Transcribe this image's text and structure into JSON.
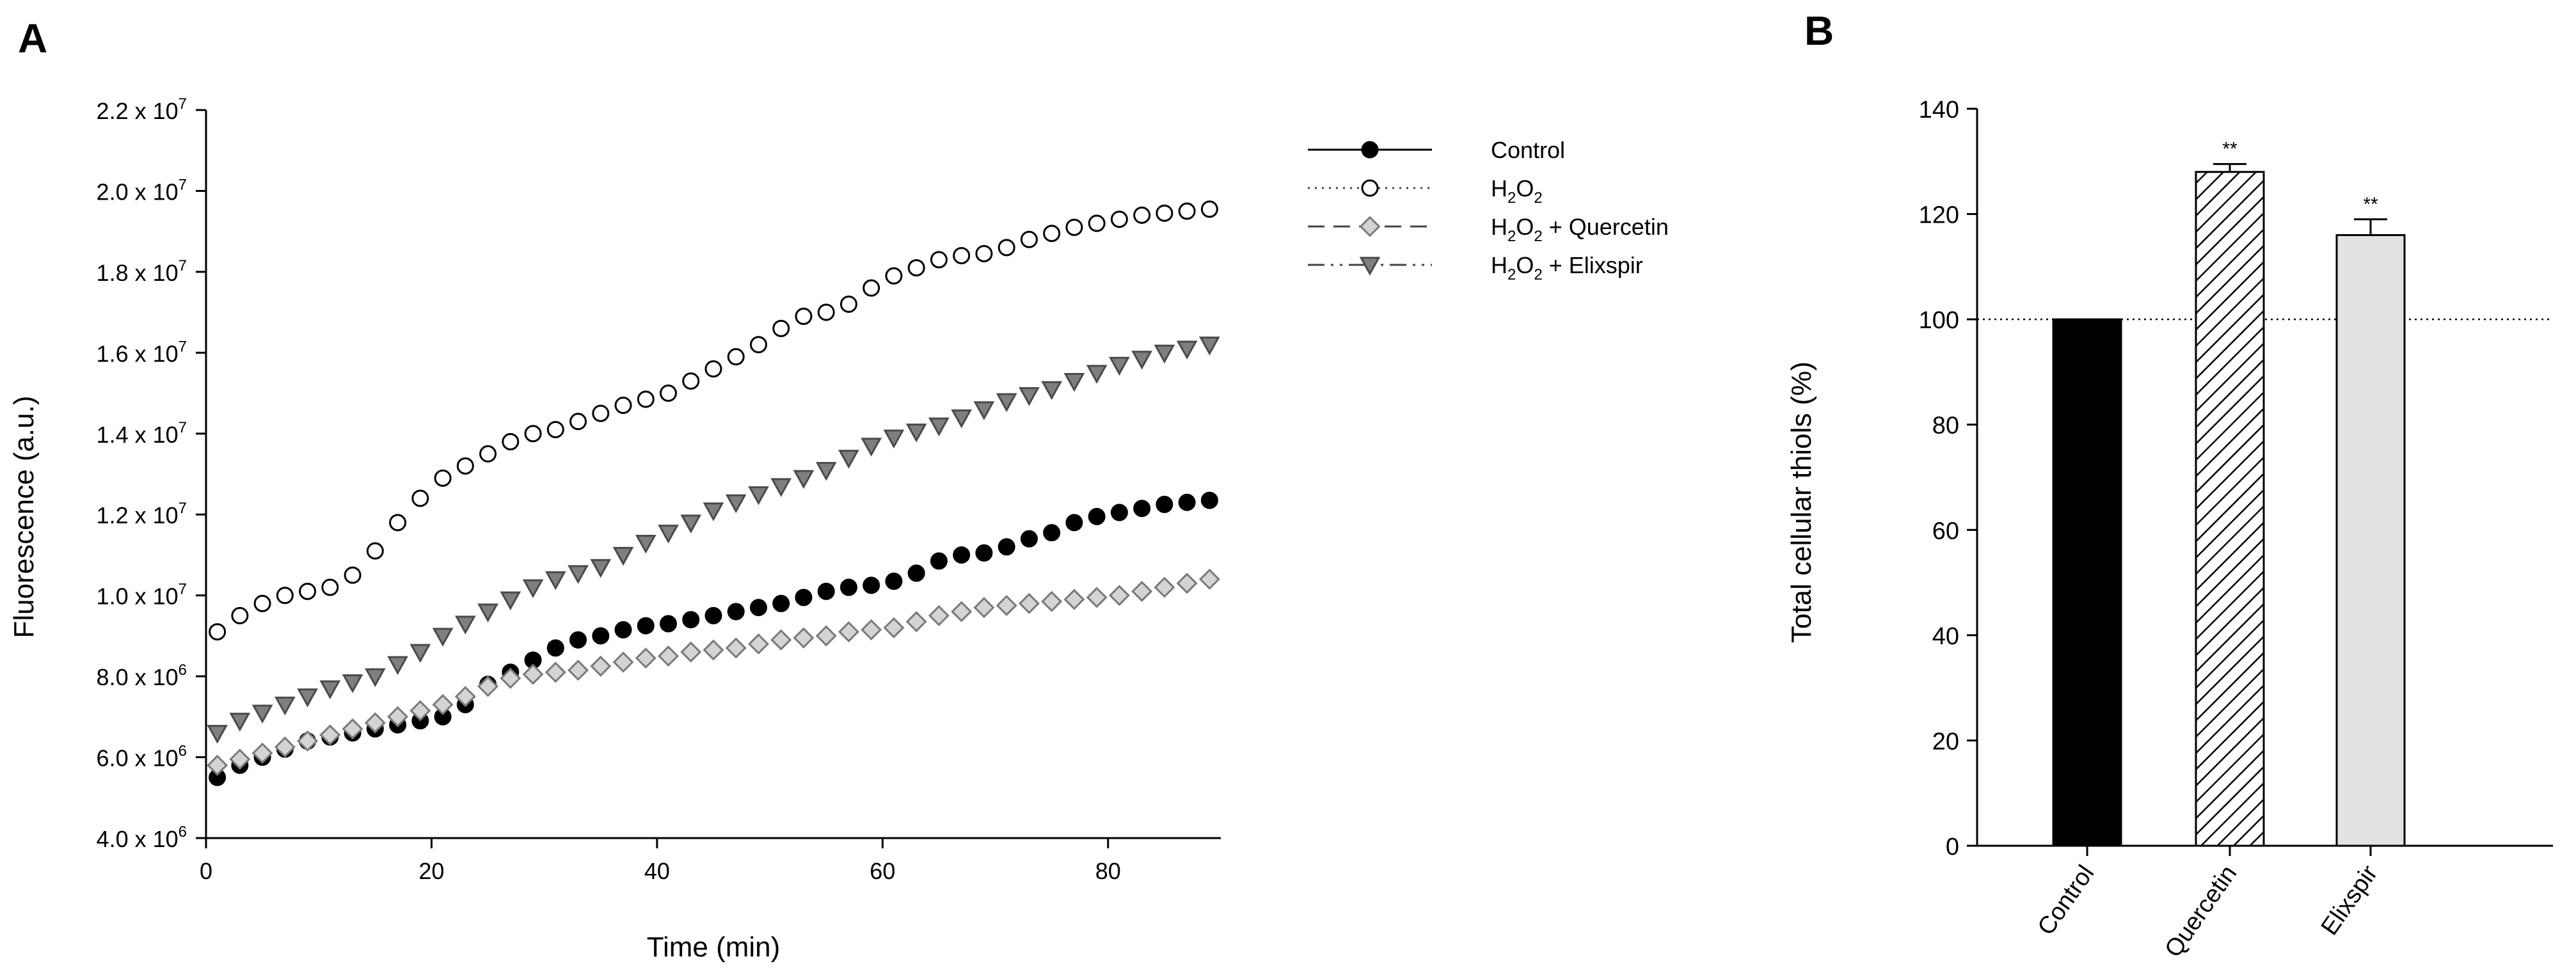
{
  "chart_data": [
    {
      "panel": "A",
      "type": "scatter",
      "xlabel": "Time (min)",
      "ylabel": "Fluorescence (a.u.)",
      "xlim": [
        0,
        90
      ],
      "ylim": [
        4000000.0,
        22000000.0
      ],
      "x_ticks": [
        0,
        20,
        40,
        60,
        80
      ],
      "y_ticks": [
        {
          "value": 4000000.0,
          "mantissa": "4.0 x 10",
          "exp": "6"
        },
        {
          "value": 6000000.0,
          "mantissa": "6.0 x 10",
          "exp": "6"
        },
        {
          "value": 8000000.0,
          "mantissa": "8.0 x 10",
          "exp": "6"
        },
        {
          "value": 10000000.0,
          "mantissa": "1.0 x 10",
          "exp": "7"
        },
        {
          "value": 12000000.0,
          "mantissa": "1.2 x 10",
          "exp": "7"
        },
        {
          "value": 14000000.0,
          "mantissa": "1.4 x 10",
          "exp": "7"
        },
        {
          "value": 16000000.0,
          "mantissa": "1.6 x 10",
          "exp": "7"
        },
        {
          "value": 18000000.0,
          "mantissa": "1.8 x 10",
          "exp": "7"
        },
        {
          "value": 20000000.0,
          "mantissa": "2.0 x 10",
          "exp": "7"
        },
        {
          "value": 22000000.0,
          "mantissa": "2.2 x 10",
          "exp": "7"
        }
      ],
      "x": [
        1,
        3,
        5,
        7,
        9,
        11,
        13,
        15,
        17,
        19,
        21,
        23,
        25,
        27,
        29,
        31,
        33,
        35,
        37,
        39,
        41,
        43,
        45,
        47,
        49,
        51,
        53,
        55,
        57,
        59,
        61,
        63,
        65,
        67,
        69,
        71,
        73,
        75,
        77,
        79,
        81,
        83,
        85,
        87,
        89
      ],
      "legend_position": "top-right",
      "series": [
        {
          "name": "Control",
          "legend_parts": [
            "Control"
          ],
          "marker": "circle",
          "fill": "#000000",
          "stroke": "#000000",
          "dash": "solid",
          "values": [
            5500000.0,
            5800000.0,
            6000000.0,
            6200000.0,
            6400000.0,
            6500000.0,
            6600000.0,
            6700000.0,
            6800000.0,
            6900000.0,
            7000000.0,
            7300000.0,
            7800000.0,
            8100000.0,
            8400000.0,
            8700000.0,
            8900000.0,
            9000000.0,
            9150000.0,
            9250000.0,
            9300000.0,
            9400000.0,
            9500000.0,
            9600000.0,
            9700000.0,
            9800000.0,
            9950000.0,
            10100000.0,
            10200000.0,
            10250000.0,
            10350000.0,
            10550000.0,
            10850000.0,
            11000000.0,
            11050000.0,
            11200000.0,
            11400000.0,
            11550000.0,
            11800000.0,
            11950000.0,
            12050000.0,
            12150000.0,
            12250000.0,
            12300000.0,
            12350000.0
          ]
        },
        {
          "name": "H2O2",
          "legend_parts": [
            "H",
            "2",
            "O",
            "2",
            ""
          ],
          "marker": "circle",
          "fill": "#ffffff",
          "stroke": "#000000",
          "dash": "dotted",
          "values": [
            9100000.0,
            9500000.0,
            9800000.0,
            10000000.0,
            10100000.0,
            10200000.0,
            10500000.0,
            11100000.0,
            11800000.0,
            12400000.0,
            12900000.0,
            13200000.0,
            13500000.0,
            13800000.0,
            14000000.0,
            14100000.0,
            14300000.0,
            14500000.0,
            14700000.0,
            14850000.0,
            15000000.0,
            15300000.0,
            15600000.0,
            15900000.0,
            16200000.0,
            16600000.0,
            16900000.0,
            17000000.0,
            17200000.0,
            17600000.0,
            17900000.0,
            18100000.0,
            18300000.0,
            18400000.0,
            18450000.0,
            18600000.0,
            18800000.0,
            18950000.0,
            19100000.0,
            19200000.0,
            19300000.0,
            19400000.0,
            19450000.0,
            19500000.0,
            19550000.0
          ]
        },
        {
          "name": "H2O2 + Quercetin",
          "legend_parts": [
            "H",
            "2",
            "O",
            "2",
            " + Quercetin"
          ],
          "marker": "diamond",
          "fill": "#d4d4d4",
          "stroke": "#7a7a7a",
          "dash": "dashed",
          "values": [
            5800000.0,
            5950000.0,
            6100000.0,
            6250000.0,
            6400000.0,
            6550000.0,
            6700000.0,
            6850000.0,
            7000000.0,
            7150000.0,
            7300000.0,
            7500000.0,
            7750000.0,
            7950000.0,
            8050000.0,
            8100000.0,
            8150000.0,
            8250000.0,
            8350000.0,
            8450000.0,
            8500000.0,
            8600000.0,
            8650000.0,
            8700000.0,
            8800000.0,
            8900000.0,
            8950000.0,
            9000000.0,
            9100000.0,
            9150000.0,
            9200000.0,
            9350000.0,
            9500000.0,
            9600000.0,
            9700000.0,
            9750000.0,
            9800000.0,
            9850000.0,
            9900000.0,
            9950000.0,
            10000000.0,
            10100000.0,
            10200000.0,
            10300000.0,
            10400000.0
          ]
        },
        {
          "name": "H2O2 + Elixspir",
          "legend_parts": [
            "H",
            "2",
            "O",
            "2",
            " + Elixspir"
          ],
          "marker": "triangle-down",
          "fill": "#7f7f7f",
          "stroke": "#4a4a4a",
          "dash": "dashdotdot",
          "values": [
            6600000.0,
            6900000.0,
            7100000.0,
            7300000.0,
            7500000.0,
            7700000.0,
            7850000.0,
            8000000.0,
            8300000.0,
            8600000.0,
            9000000.0,
            9300000.0,
            9600000.0,
            9900000.0,
            10200000.0,
            10400000.0,
            10550000.0,
            10700000.0,
            11000000.0,
            11300000.0,
            11550000.0,
            11800000.0,
            12100000.0,
            12300000.0,
            12500000.0,
            12700000.0,
            12900000.0,
            13100000.0,
            13400000.0,
            13700000.0,
            13900000.0,
            14050000.0,
            14200000.0,
            14400000.0,
            14600000.0,
            14800000.0,
            14950000.0,
            15100000.0,
            15300000.0,
            15500000.0,
            15700000.0,
            15850000.0,
            16000000.0,
            16100000.0,
            16200000.0
          ]
        }
      ]
    },
    {
      "panel": "B",
      "type": "bar",
      "xlabel": "",
      "ylabel": "Total cellular thiols (%)",
      "ylim": [
        0,
        140
      ],
      "y_ticks": [
        0,
        20,
        40,
        60,
        80,
        100,
        120,
        140
      ],
      "reference_line": 100,
      "categories": [
        "Control",
        "Quercetin",
        "Elixspir"
      ],
      "values": [
        100,
        128,
        116
      ],
      "errors": [
        0,
        1.5,
        3
      ],
      "annotations": [
        "",
        "**",
        "**"
      ],
      "fills": [
        "#000000",
        "hatch",
        "#e2e2e2"
      ]
    }
  ]
}
